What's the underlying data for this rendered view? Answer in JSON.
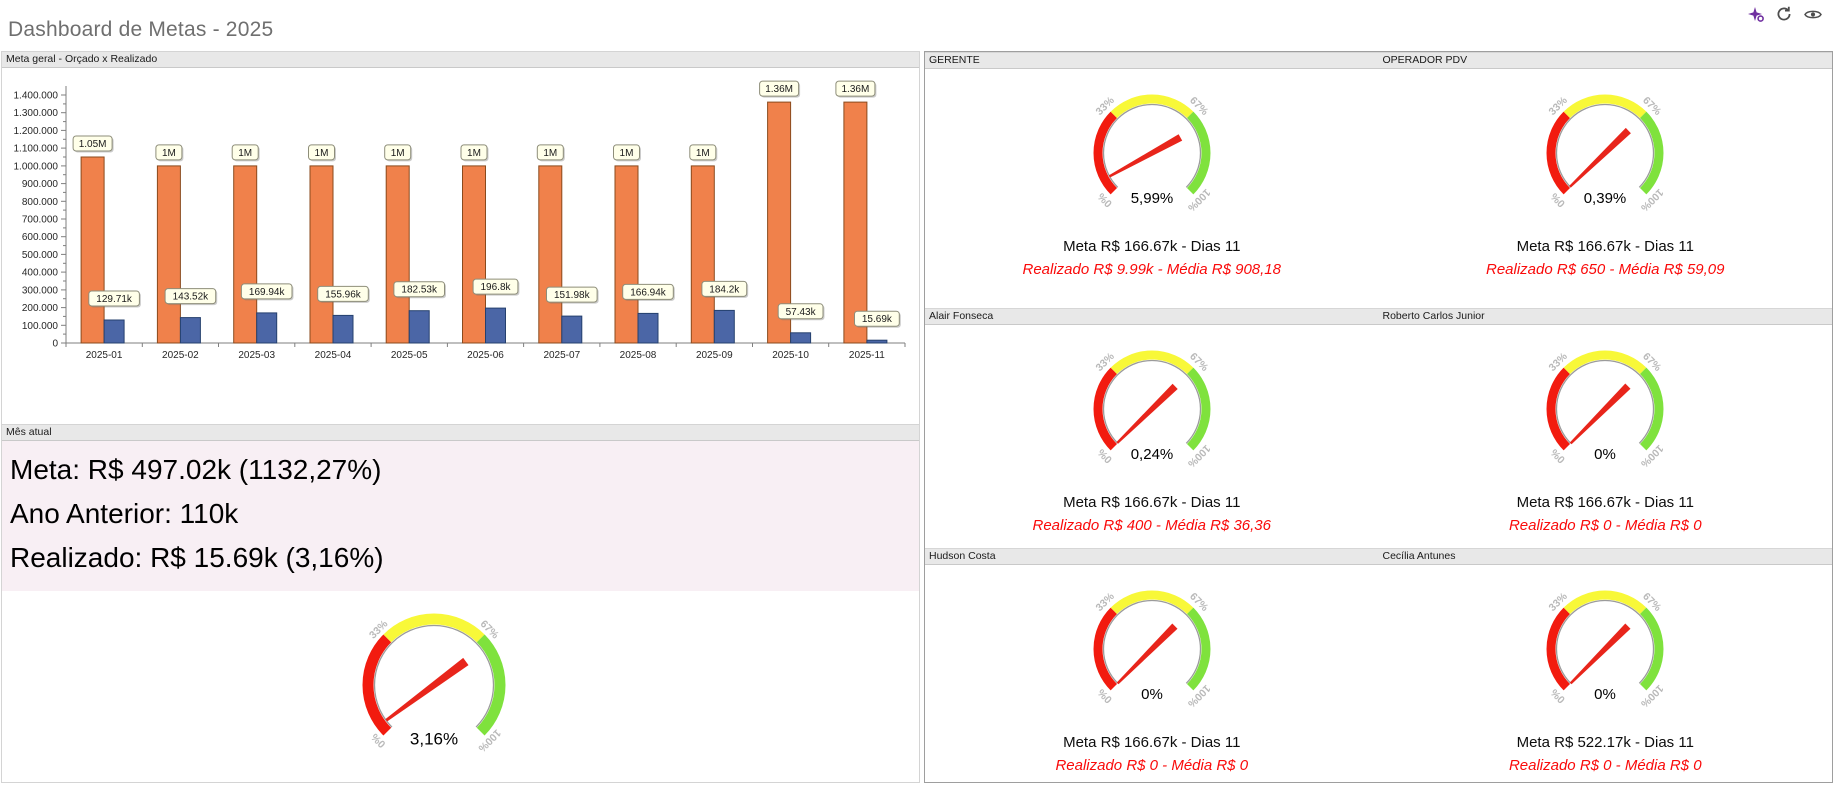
{
  "header": {
    "title": "Dashboard de Metas - 2025",
    "toolbar_icons": [
      {
        "name": "sparkle",
        "color": "#7030A0"
      },
      {
        "name": "refresh",
        "color": "#4d4d4d"
      },
      {
        "name": "eye",
        "color": "#4d4d4d"
      }
    ]
  },
  "mes_atual": {
    "header": "Mês atual",
    "lines": [
      "Meta: R$ 497.02k (1132,27%)",
      "Ano Anterior: 110k",
      "Realizado: R$ 15.69k (3,16%)"
    ]
  },
  "chart_data": [
    {
      "type": "bar",
      "title": "Meta geral - Orçado x Realizado",
      "categories": [
        "2025-01",
        "2025-02",
        "2025-03",
        "2025-04",
        "2025-05",
        "2025-06",
        "2025-07",
        "2025-08",
        "2025-09",
        "2025-10",
        "2025-11"
      ],
      "series": [
        {
          "name": "Orçado",
          "color": "#F0814B",
          "values": [
            1050000,
            1000000,
            1000000,
            1000000,
            1000000,
            1000000,
            1000000,
            1000000,
            1000000,
            1360000,
            1360000
          ],
          "labels": [
            "1.05M",
            "1M",
            "1M",
            "1M",
            "1M",
            "1M",
            "1M",
            "1M",
            "1M",
            "1.36M",
            "1.36M"
          ]
        },
        {
          "name": "Realizado",
          "color": "#4B66A6",
          "values": [
            129710,
            143520,
            169940,
            155960,
            182530,
            196800,
            151980,
            166940,
            184200,
            57430,
            15690
          ],
          "labels": [
            "129.71k",
            "143.52k",
            "169.94k",
            "155.96k",
            "182.53k",
            "196.8k",
            "151.98k",
            "166.94k",
            "184.2k",
            "57.43k",
            "15.69k"
          ]
        }
      ],
      "ylim": [
        0,
        1400000
      ],
      "ytick_step": 100000,
      "ytick_labels": [
        "1.400.000",
        "1.300.000",
        "1.200.000",
        "1.100.000",
        "1.000.000",
        "900.000",
        "800.000",
        "700.000",
        "600.000",
        "500.000",
        "400.000",
        "300.000",
        "200.000",
        "100.000",
        "0"
      ],
      "grid": false,
      "legend": "none"
    },
    {
      "type": "gauge",
      "value_pct": 3.16,
      "value_label": "3,16%",
      "scale": {
        "min": 0,
        "max": 100,
        "tick_labels": [
          "0%",
          "33%",
          "67%",
          "100%"
        ],
        "bands": [
          {
            "to": 33,
            "color": "#F21B0F"
          },
          {
            "to": 67,
            "color": "#F8F838"
          },
          {
            "to": 100,
            "color": "#7FE23D"
          }
        ]
      }
    },
    {
      "type": "gauge",
      "scale": {
        "min": 0,
        "max": 100,
        "tick_labels": [
          "0%",
          "33%",
          "67%",
          "100%"
        ],
        "bands": [
          {
            "to": 33,
            "color": "#F21B0F"
          },
          {
            "to": 67,
            "color": "#F8F838"
          },
          {
            "to": 100,
            "color": "#7FE23D"
          }
        ]
      },
      "items": [
        {
          "name": "GERENTE",
          "value_pct": 5.99,
          "value_label": "5,99%",
          "meta_line": "Meta R$ 166.67k - Dias 11",
          "realizado_line": "Realizado R$ 9.99k - Média R$ 908,18"
        },
        {
          "name": "OPERADOR PDV",
          "value_pct": 0.39,
          "value_label": "0,39%",
          "meta_line": "Meta R$ 166.67k - Dias 11",
          "realizado_line": "Realizado R$ 650 - Média R$ 59,09"
        },
        {
          "name": "Alair Fonseca",
          "value_pct": 0.24,
          "value_label": "0,24%",
          "meta_line": "Meta R$ 166.67k - Dias 11",
          "realizado_line": "Realizado R$ 400 - Média R$ 36,36"
        },
        {
          "name": "Roberto Carlos Junior",
          "value_pct": 0,
          "value_label": "0%",
          "meta_line": "Meta R$ 166.67k - Dias 11",
          "realizado_line": "Realizado R$ 0 - Média R$ 0"
        },
        {
          "name": "Hudson Costa",
          "value_pct": 0,
          "value_label": "0%",
          "meta_line": "Meta R$ 166.67k - Dias 11",
          "realizado_line": "Realizado R$ 0 - Média R$ 0"
        },
        {
          "name": "Cecília Antunes",
          "value_pct": 0,
          "value_label": "0%",
          "meta_line": "Meta R$ 522.17k - Dias 11",
          "realizado_line": "Realizado R$ 0 - Média R$ 0"
        }
      ]
    }
  ]
}
